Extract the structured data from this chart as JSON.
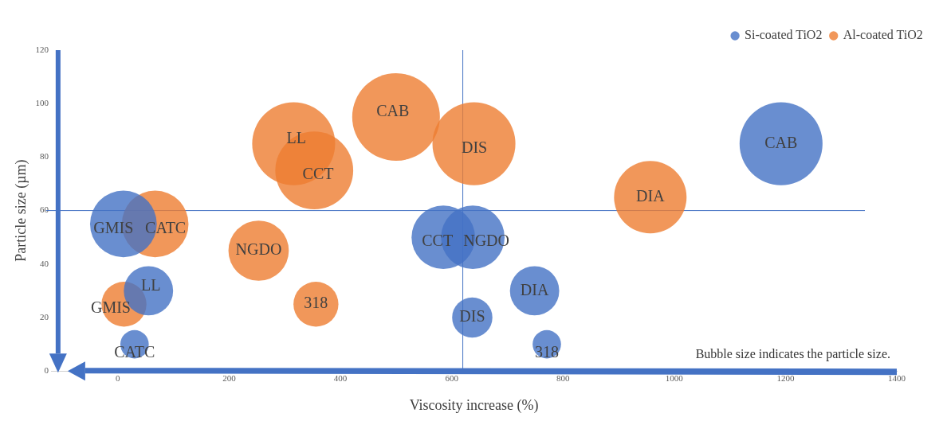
{
  "chart_data": {
    "type": "bubble",
    "xlabel": "Viscosity increase (%)",
    "ylabel": "Particle size (µm)",
    "xlim": [
      -120,
      1400
    ],
    "xticks": [
      0,
      200,
      400,
      600,
      800,
      1000,
      1200,
      1400
    ],
    "ylim": [
      0,
      120
    ],
    "yticks": [
      0,
      20,
      40,
      60,
      80,
      100,
      120
    ],
    "grid": false,
    "legend": "top right",
    "series": [
      {
        "name": "Si-coated TiO2",
        "color": "#4472c4",
        "x": [
          10,
          55,
          30,
          585,
          638,
          637,
          749,
          771,
          1192
        ],
        "values": [
          55,
          30,
          10,
          50,
          50,
          20,
          30,
          10,
          85
        ],
        "sizes": [
          0.579,
          0.316,
          0.105,
          0.526,
          0.526,
          0.211,
          0.316,
          0.105,
          0.895
        ]
      },
      {
        "name": "Al-coated TiO2",
        "color": "#ed7d31",
        "x": [
          11,
          67,
          253,
          356,
          316,
          353,
          500,
          640,
          957
        ],
        "values": [
          25,
          55,
          45,
          25,
          85,
          75,
          95,
          85,
          65
        ],
        "sizes": [
          0.263,
          0.579,
          0.474,
          0.263,
          0.895,
          0.789,
          1,
          0.895,
          0.684
        ]
      }
    ],
    "ref_lines": [
      {
        "axis": "x",
        "value": 620,
        "color": "#4472c4"
      },
      {
        "axis": "y",
        "value": 60,
        "color": "#4472c4"
      }
    ],
    "annotations": [
      "Bubble size indicates the particle size.",
      {
        "text": "GMIS",
        "x": 10,
        "y": 55
      },
      {
        "text": "LL",
        "x": 55,
        "y": 30
      },
      {
        "text": "CATC",
        "x": 30,
        "y": 10
      },
      {
        "text": "CCT",
        "x": 585,
        "y": 50
      },
      {
        "text": "NGDO",
        "x": 638,
        "y": 50
      },
      {
        "text": "DIS",
        "x": 637,
        "y": 20
      },
      {
        "text": "DIA",
        "x": 749,
        "y": 30
      },
      {
        "text": "318",
        "x": 771,
        "y": 10
      },
      {
        "text": "CAB",
        "x": 1192,
        "y": 85
      },
      {
        "text": "GMIS",
        "x": 11,
        "y": 25
      },
      {
        "text": "CATC",
        "x": 67,
        "y": 55
      },
      {
        "text": "NGDO",
        "x": 253,
        "y": 45
      },
      {
        "text": "318",
        "x": 356,
        "y": 25
      },
      {
        "text": "LL",
        "x": 316,
        "y": 85
      },
      {
        "text": "CCT",
        "x": 353,
        "y": 75
      },
      {
        "text": "CAB",
        "x": 500,
        "y": 95
      },
      {
        "text": "DIS",
        "x": 640,
        "y": 85
      },
      {
        "text": "DIA",
        "x": 957,
        "y": 65
      }
    ]
  }
}
